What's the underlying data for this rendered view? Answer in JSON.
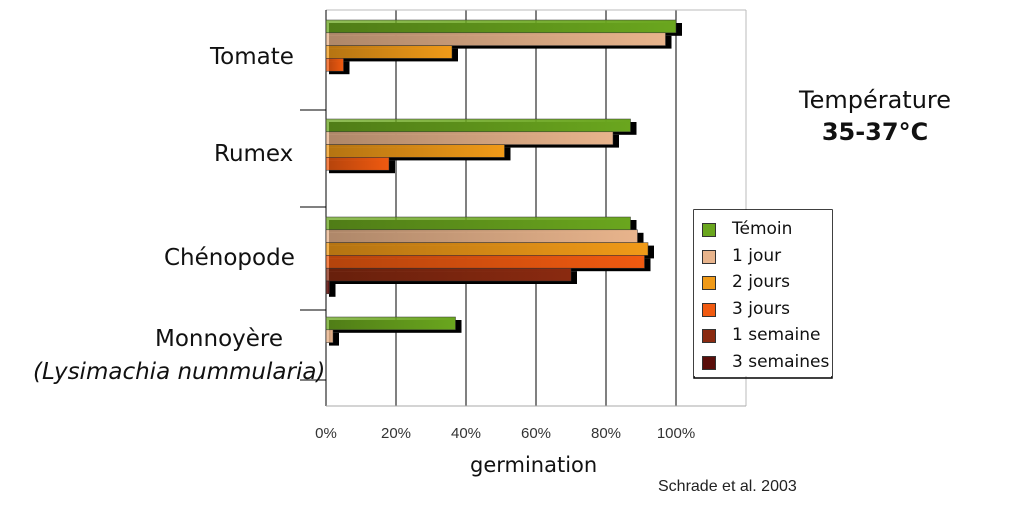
{
  "chart_data": {
    "type": "bar",
    "orientation": "horizontal",
    "categories": [
      "Tomate",
      "Rumex",
      "Chénopode",
      "Monnoyère"
    ],
    "category_subtitles": [
      "",
      "",
      "",
      "(Lysimachia nummularia)"
    ],
    "series": [
      {
        "name": "Témoin",
        "color": "#6aa61e",
        "values": [
          100,
          87,
          87,
          37
        ]
      },
      {
        "name": "1 jour",
        "color": "#e8b48c",
        "values": [
          97,
          82,
          89,
          2
        ]
      },
      {
        "name": "2 jours",
        "color": "#f09a18",
        "values": [
          36,
          51,
          92,
          0
        ]
      },
      {
        "name": "3 jours",
        "color": "#f05a10",
        "values": [
          5,
          18,
          91,
          0
        ]
      },
      {
        "name": "1 semaine",
        "color": "#8a2a10",
        "values": [
          0,
          0,
          70,
          0
        ]
      },
      {
        "name": "3 semaines",
        "color": "#5a0e0a",
        "values": [
          0,
          0,
          1,
          0
        ]
      }
    ],
    "xlabel": "germination",
    "ylabel": "",
    "xlim": [
      0,
      120
    ],
    "xticks": [
      0,
      20,
      40,
      60,
      80,
      100
    ],
    "xtick_labels": [
      "0%",
      "20%",
      "40%",
      "60%",
      "80%",
      "100%"
    ],
    "grid": true,
    "legend_position": "right",
    "annotation_lines": [
      "Température",
      "35-37°C"
    ],
    "source": "Schrade et al. 2003"
  }
}
